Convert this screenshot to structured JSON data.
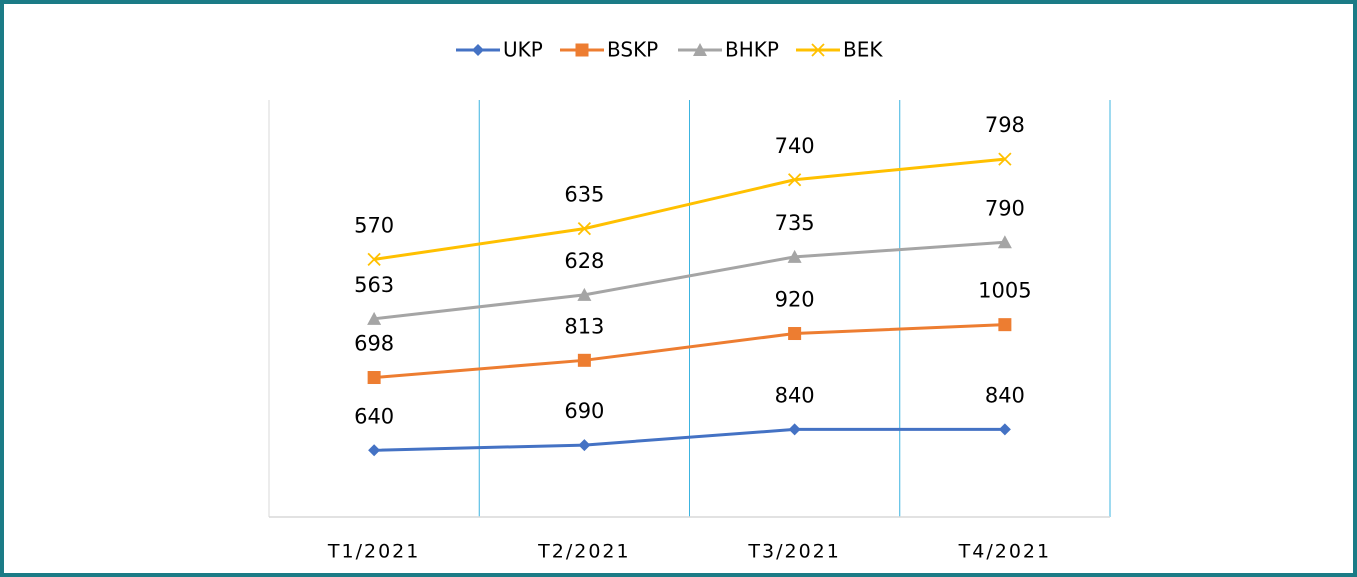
{
  "chart_data": {
    "type": "line",
    "stacked": true,
    "categories": [
      "T1/2021",
      "T2/2021",
      "T3/2021",
      "T4/2021"
    ],
    "ylim": [
      0,
      4000
    ],
    "legend": "top",
    "series": [
      {
        "name": "UKP",
        "color": "#4472c4",
        "marker": "diamond",
        "values": [
          640,
          690,
          840,
          840
        ]
      },
      {
        "name": "BSKP",
        "color": "#ed7d31",
        "marker": "square",
        "values": [
          698,
          813,
          920,
          1005
        ]
      },
      {
        "name": "BHKP",
        "color": "#a5a5a5",
        "marker": "triangle",
        "values": [
          563,
          628,
          735,
          790
        ]
      },
      {
        "name": "BEK",
        "color": "#ffc000",
        "marker": "x",
        "values": [
          570,
          635,
          740,
          798
        ]
      }
    ]
  }
}
